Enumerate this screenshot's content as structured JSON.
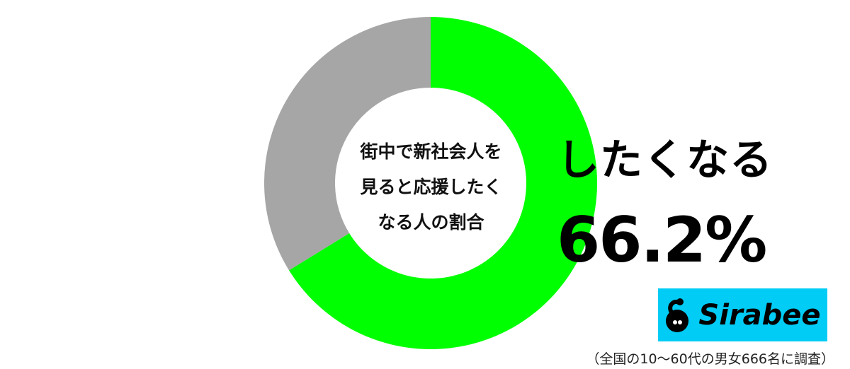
{
  "chart_data": {
    "type": "pie",
    "style": "donut",
    "title": "街中で新社会人を見ると応援したくなる人の割合",
    "title_lines": [
      "街中で新社会人を",
      "見ると応援したく",
      "なる人の割合"
    ],
    "slices": [
      {
        "label": "したくなる",
        "value": 66.2,
        "color": "#00ff00"
      },
      {
        "value": 33.8,
        "color": "#a6a6a6"
      }
    ],
    "start": "top",
    "direction": "clockwise",
    "highlight_label": "したくなる",
    "highlight_value": "66.2%"
  },
  "brand": {
    "name": "Sirabee",
    "background": "#00ccf5"
  },
  "footnote": "（全国の10〜60代の男女666名に調査）"
}
